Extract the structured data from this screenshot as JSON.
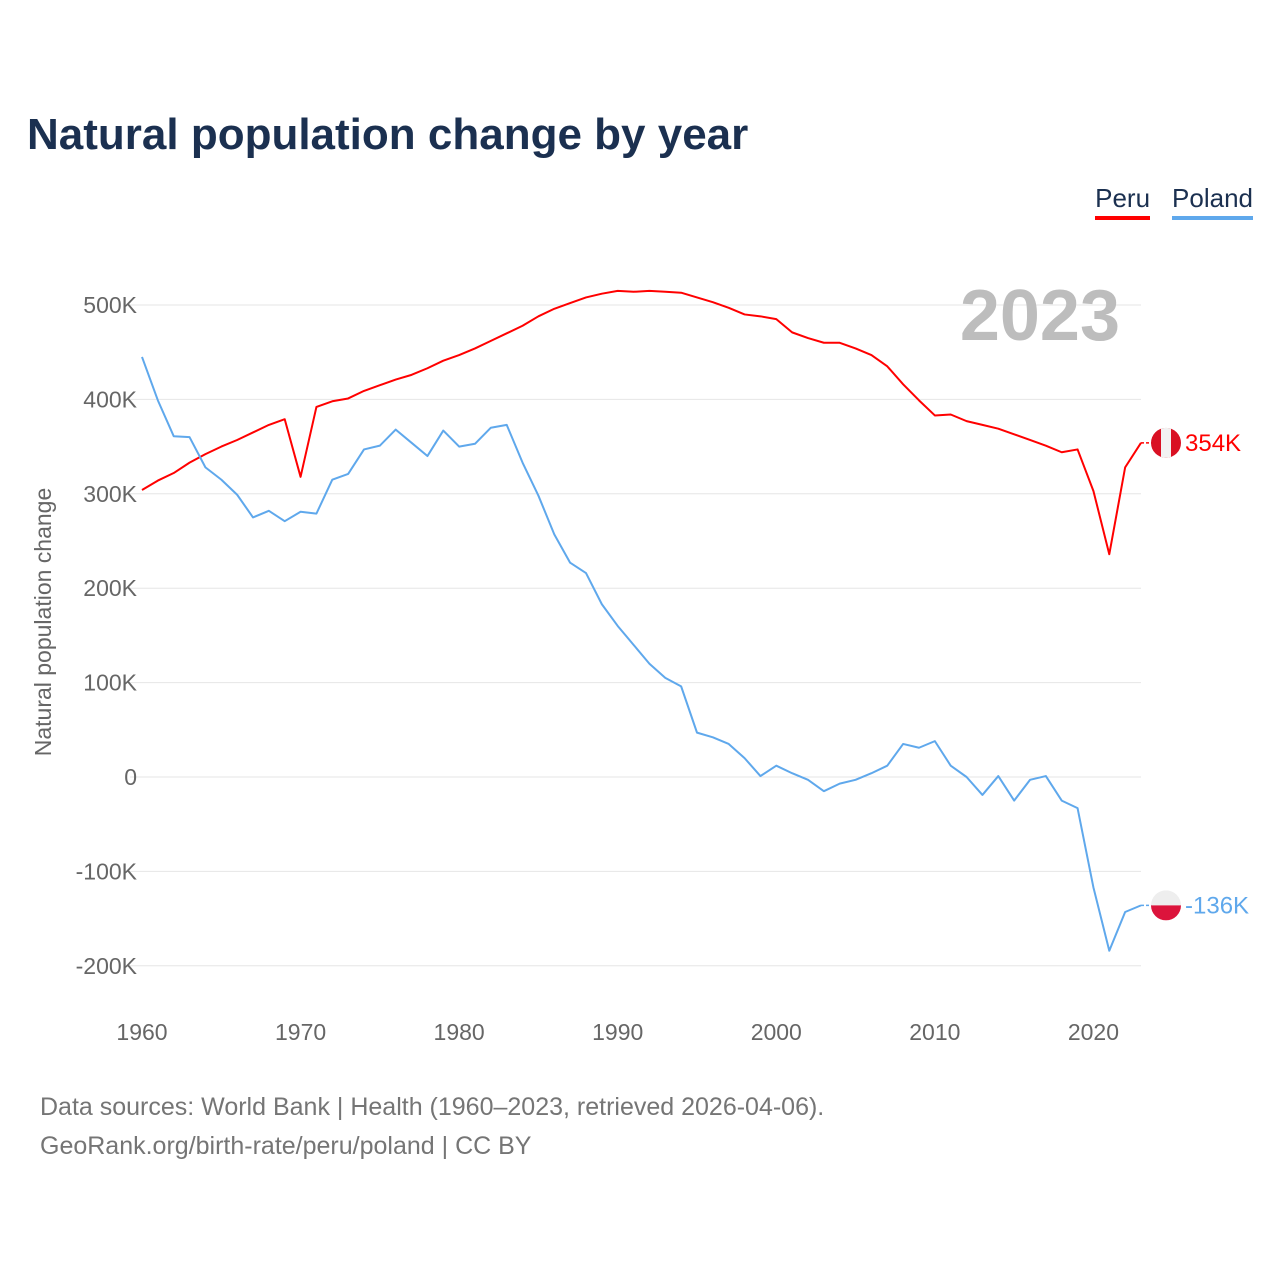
{
  "title": "Natural population change by year",
  "footer": {
    "line1": "Data sources: World Bank | Health (1960–2023, retrieved 2026-04-06).",
    "line2": "GeoRank.org/birth-rate/peru/poland | CC BY"
  },
  "chart_data": {
    "type": "line",
    "title": "Natural population change by year",
    "xlabel": "",
    "ylabel": "Natural population change",
    "year_overlay": "2023",
    "xlim": [
      1960,
      2023
    ],
    "ylim": [
      -200000,
      500000
    ],
    "x_ticks": [
      1960,
      1970,
      1980,
      1990,
      2000,
      2010,
      2020
    ],
    "x_tick_labels": [
      "1960",
      "1970",
      "1980",
      "1990",
      "2000",
      "2010",
      "2020"
    ],
    "y_ticks": [
      500000,
      400000,
      300000,
      200000,
      100000,
      0,
      -100000,
      -200000
    ],
    "y_tick_labels": [
      "500K",
      "400K",
      "300K",
      "200K",
      "100K",
      "0",
      "-100K",
      "-200K"
    ],
    "grid": true,
    "legend_position": "top-right",
    "series": [
      {
        "name": "Peru",
        "color": "#ff0000",
        "end_label": "354K",
        "values": [
          304,
          314,
          322,
          333,
          342,
          350,
          357,
          365,
          373,
          379,
          318,
          392,
          398,
          401,
          409,
          415,
          421,
          426,
          433,
          441,
          447,
          454,
          462,
          470,
          478,
          488,
          496,
          502,
          508,
          512,
          515,
          514,
          515,
          514,
          513,
          508,
          503,
          497,
          490,
          488,
          485,
          471,
          465,
          460,
          460,
          454,
          447,
          435,
          416,
          399,
          383,
          384,
          377,
          373,
          369,
          363,
          357,
          351,
          344,
          347,
          303,
          236,
          328,
          354
        ]
      },
      {
        "name": "Poland",
        "color": "#5fa8ec",
        "end_label": "-136K",
        "values": [
          445,
          399,
          361,
          360,
          328,
          315,
          299,
          275,
          282,
          271,
          281,
          279,
          315,
          321,
          347,
          351,
          368,
          354,
          340,
          367,
          350,
          353,
          370,
          373,
          333,
          298,
          257,
          227,
          216,
          183,
          160,
          140,
          120,
          105,
          96,
          47,
          42,
          35,
          20,
          1,
          12,
          4,
          -3,
          -15,
          -7,
          -3,
          4,
          12,
          35,
          31,
          38,
          12,
          0,
          -19,
          1,
          -25,
          -3,
          1,
          -25,
          -33,
          -117,
          -184,
          -143,
          -136
        ]
      }
    ],
    "value_unit": "thousands"
  }
}
